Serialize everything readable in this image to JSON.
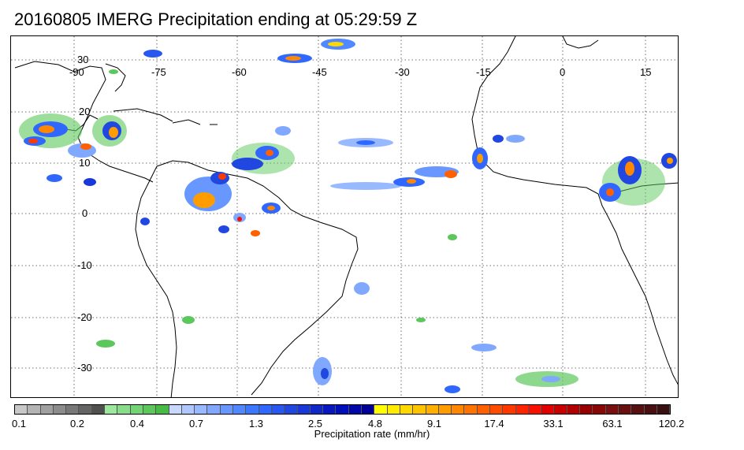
{
  "title": "20160805 IMERG Precipitation ending at 05:29:59 Z",
  "map": {
    "lon_labels": [
      "-90",
      "-75",
      "-60",
      "-45",
      "-30",
      "-15",
      "0",
      "15"
    ],
    "lat_labels": [
      "30",
      "20",
      "10",
      "0",
      "-10",
      "-20",
      "-30"
    ],
    "gridlines": "dotted",
    "coastline_color": "#000000"
  },
  "colorbar": {
    "caption": "Precipitation rate (mm/hr)",
    "ticks": [
      "0.1",
      "0.2",
      "0.4",
      "0.7",
      "1.3",
      "2.5",
      "4.8",
      "9.1",
      "17.4",
      "33.1",
      "63.1",
      "120.2"
    ],
    "colors": [
      "#c8c8c8",
      "#b4b4b4",
      "#a0a0a0",
      "#8c8c8c",
      "#787878",
      "#646464",
      "#50504f",
      "#9ee89e",
      "#88de88",
      "#72d472",
      "#5cc85c",
      "#46bc46",
      "#c8d8ff",
      "#b0c8ff",
      "#98b8ff",
      "#80a8ff",
      "#6898ff",
      "#5088ff",
      "#3c78ff",
      "#3068ff",
      "#2858f0",
      "#2048e0",
      "#1838d8",
      "#1028c8",
      "#0818c0",
      "#0010b8",
      "#0008a8",
      "#000098",
      "#ffff00",
      "#ffec00",
      "#ffd800",
      "#ffc400",
      "#ffb000",
      "#ff9c00",
      "#ff8800",
      "#ff7400",
      "#ff6000",
      "#ff4c00",
      "#ff3800",
      "#ff2400",
      "#f81000",
      "#e00000",
      "#c80000",
      "#b00000",
      "#980000",
      "#880808",
      "#781010",
      "#681010",
      "#581010",
      "#481010",
      "#381010"
    ]
  }
}
